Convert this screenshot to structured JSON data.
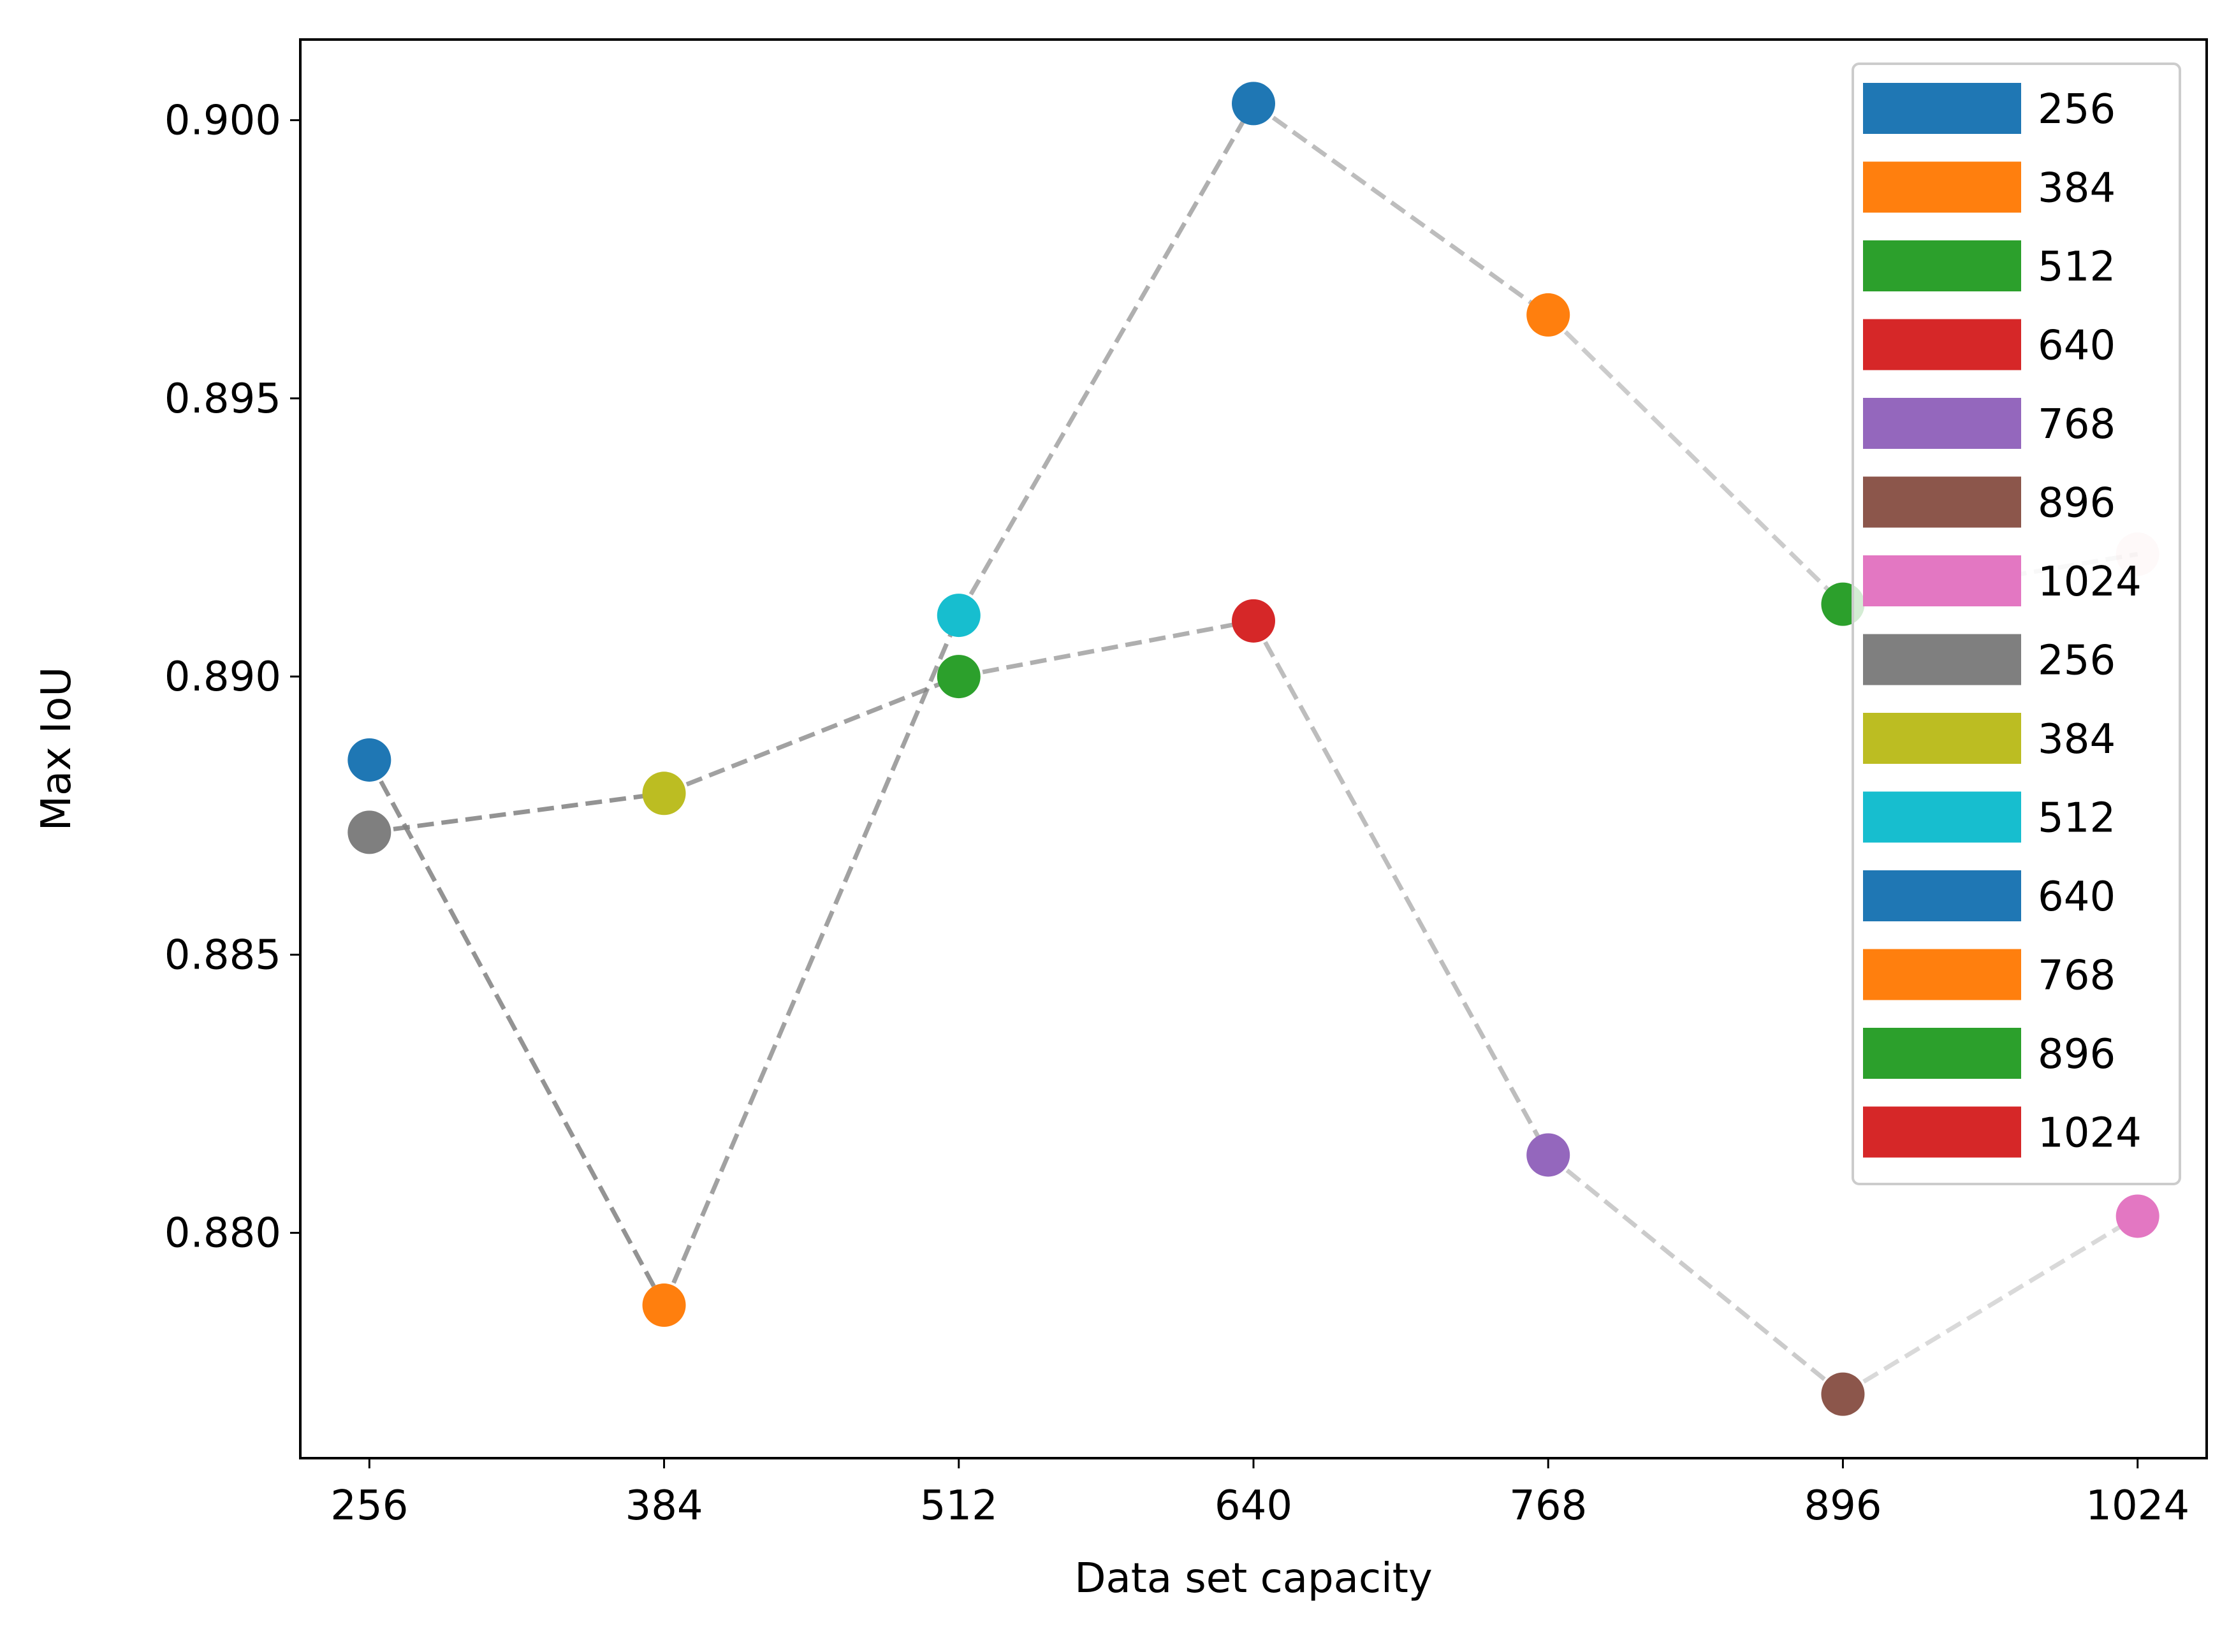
{
  "chart_data": {
    "type": "line",
    "title": "",
    "xlabel": "Data set capacity",
    "ylabel": "Max IoU",
    "xlim": [
      226,
      1054
    ],
    "ylim": [
      0.87595,
      0.90145
    ],
    "xticks": [
      256,
      384,
      512,
      640,
      768,
      896,
      1024
    ],
    "xtick_labels": [
      "256",
      "384",
      "512",
      "640",
      "768",
      "896",
      "1024"
    ],
    "yticks": [
      0.88,
      0.885,
      0.89,
      0.895,
      0.9
    ],
    "ytick_labels": [
      "0.880",
      "0.885",
      "0.890",
      "0.895",
      "0.900"
    ],
    "grid": false,
    "legend_position": "top-right",
    "line_style": "dashed",
    "line_color": "#808080",
    "series": [
      {
        "x": [
          256,
          384,
          512,
          640,
          768,
          896,
          1024
        ],
        "y": [
          0.8872,
          0.8879,
          0.89,
          0.891,
          0.8814,
          0.8771,
          0.8803
        ],
        "colors": [
          "#7f7f7f",
          "#bcbd22",
          "#2ca02c",
          "#d62728",
          "#9467bd",
          "#8c564b",
          "#e377c2"
        ]
      },
      {
        "x": [
          256,
          384,
          512,
          640,
          768,
          896,
          1024
        ],
        "y": [
          0.8885,
          0.8787,
          0.8911,
          0.9003,
          0.8965,
          0.8913,
          0.8922
        ],
        "colors": [
          "#1f77b4",
          "#ff7f0e",
          "#17becf",
          "#1f77b4",
          "#ff7f0e",
          "#2ca02c",
          "#d62728"
        ]
      }
    ],
    "legend": [
      {
        "label": "256",
        "color": "#1f77b4"
      },
      {
        "label": "384",
        "color": "#ff7f0e"
      },
      {
        "label": "512",
        "color": "#2ca02c"
      },
      {
        "label": "640",
        "color": "#d62728"
      },
      {
        "label": "768",
        "color": "#9467bd"
      },
      {
        "label": "896",
        "color": "#8c564b"
      },
      {
        "label": "1024",
        "color": "#e377c2"
      },
      {
        "label": "256",
        "color": "#7f7f7f"
      },
      {
        "label": "384",
        "color": "#bcbd22"
      },
      {
        "label": "512",
        "color": "#17becf"
      },
      {
        "label": "640",
        "color": "#1f77b4"
      },
      {
        "label": "768",
        "color": "#ff7f0e"
      },
      {
        "label": "896",
        "color": "#2ca02c"
      },
      {
        "label": "1024",
        "color": "#d62728"
      }
    ]
  }
}
